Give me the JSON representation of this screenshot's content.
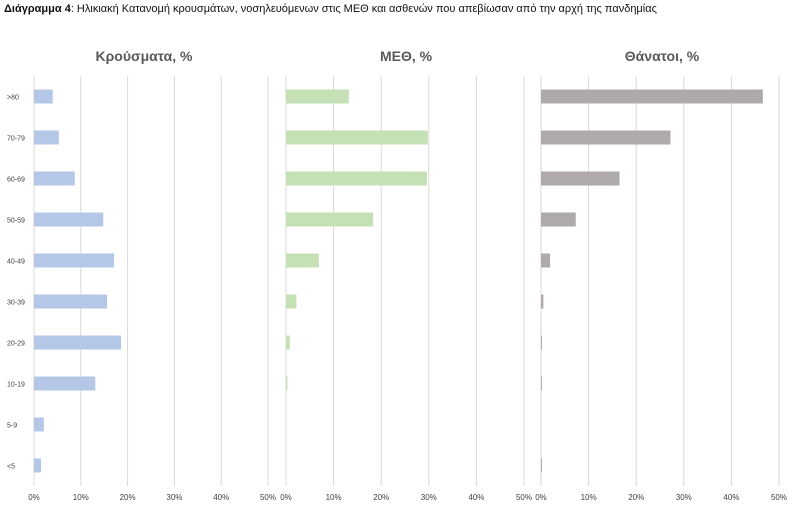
{
  "caption": {
    "prefix": "Διάγραμμα 4",
    "text": ": Ηλικιακή Κατανομή κρουσμάτων, νοσηλευόμενων στις ΜΕΘ και ασθενών που απεβίωσαν από την αρχή της πανδημίας"
  },
  "chart_data": [
    {
      "type": "bar",
      "orientation": "horizontal",
      "title": "Κρούσματα, %",
      "color": "#b4c7e7",
      "categories": [
        ">80",
        "70-79",
        "60-69",
        "50-59",
        "40-49",
        "30-39",
        "20-29",
        "10-19",
        "5-9",
        "<5"
      ],
      "values": [
        4,
        5.3,
        8.7,
        14.8,
        17.1,
        15.6,
        18.6,
        13.1,
        2.1,
        1.5
      ],
      "xlim": [
        0,
        50
      ],
      "ticks": [
        "0%",
        "10%",
        "20%",
        "30%",
        "40%",
        "50%"
      ],
      "grid": true
    },
    {
      "type": "bar",
      "orientation": "horizontal",
      "title": "ΜΕΘ, %",
      "color": "#c5e0b4",
      "categories": [
        ">80",
        "70-79",
        "60-69",
        "50-59",
        "40-49",
        "30-39",
        "20-29",
        "10-19",
        "5-9",
        "<5"
      ],
      "values": [
        13.2,
        29.8,
        29.6,
        18.3,
        6.9,
        2.2,
        0.8,
        0.3,
        0,
        0
      ],
      "xlim": [
        0,
        50
      ],
      "ticks": [
        "0%",
        "10%",
        "20%",
        "30%",
        "40%",
        "50%"
      ],
      "grid": true
    },
    {
      "type": "bar",
      "orientation": "horizontal",
      "title": "Θάνατοι, %",
      "color": "#aeaaaa",
      "categories": [
        ">80",
        "70-79",
        "60-69",
        "50-59",
        "40-49",
        "30-39",
        "20-29",
        "10-19",
        "5-9",
        "<5"
      ],
      "values": [
        46.6,
        27.2,
        16.5,
        7.3,
        1.9,
        0.5,
        0.2,
        0.2,
        0,
        0.2
      ],
      "xlim": [
        0,
        50
      ],
      "ticks": [
        "0%",
        "10%",
        "20%",
        "30%",
        "40%",
        "50%"
      ],
      "grid": true
    }
  ]
}
